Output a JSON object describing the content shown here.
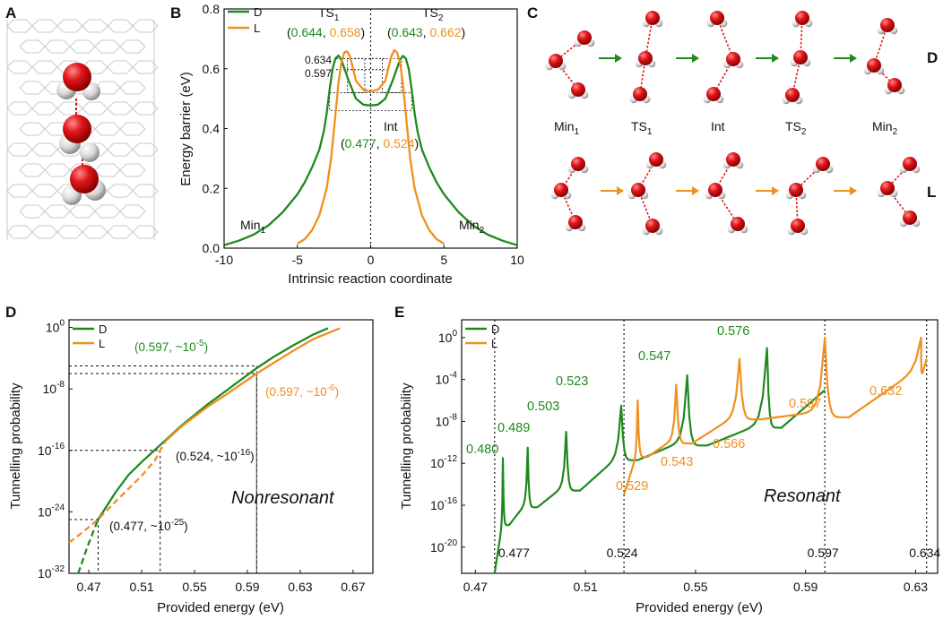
{
  "colors": {
    "D": "#1e8a1e",
    "L": "#f0901e",
    "black": "#111111",
    "oxygen": "#e0161b",
    "hydrogen": "#d8d8d8"
  },
  "panel_letters": {
    "A": "A",
    "B": "B",
    "C": "C",
    "D": "D",
    "E": "E"
  },
  "chart_data": [
    {
      "id": "B",
      "type": "line",
      "xlabel": "Intrinsic reaction coordinate",
      "ylabel": "Energy barrier (eV)",
      "xlim": [
        -10,
        10
      ],
      "ylim": [
        0,
        0.8
      ],
      "xticks": [
        "-10",
        "-5",
        "0",
        "5",
        "10"
      ],
      "yticks": [
        "0.0",
        "0.2",
        "0.4",
        "0.6",
        "0.8"
      ],
      "legend": [
        {
          "key": "D",
          "label": "D"
        },
        {
          "key": "L",
          "label": "L"
        }
      ],
      "series": [
        {
          "name": "D",
          "x": [
            -10,
            -9,
            -8,
            -7,
            -6,
            -5,
            -4.5,
            -4,
            -3.5,
            -3.2,
            -3,
            -2.8,
            -2.6,
            -2.4,
            -2.2,
            -2,
            -1.5,
            -1,
            -0.5,
            0,
            0.5,
            1,
            1.5,
            2,
            2.2,
            2.4,
            2.6,
            2.8,
            3,
            3.2,
            3.5,
            4,
            4.5,
            5,
            6,
            7,
            8,
            9,
            10
          ],
          "y": [
            0.01,
            0.025,
            0.045,
            0.075,
            0.12,
            0.18,
            0.22,
            0.27,
            0.33,
            0.39,
            0.45,
            0.53,
            0.6,
            0.635,
            0.644,
            0.63,
            0.56,
            0.5,
            0.48,
            0.477,
            0.48,
            0.5,
            0.56,
            0.63,
            0.643,
            0.635,
            0.6,
            0.53,
            0.45,
            0.39,
            0.33,
            0.27,
            0.22,
            0.18,
            0.12,
            0.075,
            0.045,
            0.025,
            0.01
          ]
        },
        {
          "name": "L",
          "x": [
            -5,
            -4.5,
            -4,
            -3.5,
            -3,
            -2.7,
            -2.4,
            -2.2,
            -2,
            -1.8,
            -1.6,
            -1.4,
            -1.2,
            -1,
            -0.5,
            0,
            0.5,
            1,
            1.2,
            1.4,
            1.6,
            1.8,
            2,
            2.2,
            2.4,
            2.7,
            3,
            3.5,
            4,
            4.5,
            5
          ],
          "y": [
            0.015,
            0.03,
            0.06,
            0.11,
            0.2,
            0.3,
            0.45,
            0.55,
            0.62,
            0.655,
            0.658,
            0.64,
            0.6,
            0.56,
            0.53,
            0.524,
            0.53,
            0.56,
            0.6,
            0.64,
            0.662,
            0.655,
            0.62,
            0.55,
            0.45,
            0.3,
            0.2,
            0.11,
            0.06,
            0.03,
            0.015
          ]
        }
      ],
      "annotations": {
        "ts1": {
          "name": "TS",
          "sub": "1",
          "d": "0.644",
          "l": "0.658"
        },
        "ts2": {
          "name": "TS",
          "sub": "2",
          "d": "0.643",
          "l": "0.662"
        },
        "int": {
          "name": "Int",
          "d": "0.477",
          "l": "0.524"
        },
        "min1": {
          "name": "Min",
          "sub": "1"
        },
        "min2": {
          "name": "Min",
          "sub": "2"
        },
        "levels": [
          {
            "label": "0.634",
            "y": 0.634
          },
          {
            "label": "0.597",
            "y": 0.597
          }
        ]
      }
    },
    {
      "id": "D",
      "type": "line",
      "xlabel": "Provided energy (eV)",
      "ylabel": "Tunnelling probability",
      "xlim": [
        0.455,
        0.685
      ],
      "ylim_log10": [
        -32,
        1
      ],
      "xticks": [
        0.47,
        0.51,
        0.55,
        0.59,
        0.63,
        0.67
      ],
      "xtick_labels": [
        "0.47",
        "0.51",
        "0.55",
        "0.59",
        "0.63",
        "0.67"
      ],
      "yticks_exp": [
        0,
        -8,
        -16,
        -24,
        -32
      ],
      "legend": [
        {
          "key": "D",
          "label": "D"
        },
        {
          "key": "L",
          "label": "L"
        }
      ],
      "series": [
        {
          "name": "D",
          "x": [
            0.462,
            0.469,
            0.477,
            0.49,
            0.5,
            0.51,
            0.524,
            0.54,
            0.55,
            0.56,
            0.575,
            0.597,
            0.61,
            0.625,
            0.64,
            0.651
          ],
          "log10_y": [
            -32,
            -28.5,
            -25,
            -21.5,
            -19.2,
            -17.5,
            -15.3,
            -12.8,
            -11.4,
            -10,
            -8.1,
            -5.3,
            -3.8,
            -2.3,
            -0.9,
            -0.1
          ]
        },
        {
          "name": "L",
          "x": [
            0.455,
            0.465,
            0.477,
            0.49,
            0.5,
            0.51,
            0.52,
            0.524,
            0.528,
            0.54,
            0.55,
            0.56,
            0.575,
            0.597,
            0.61,
            0.625,
            0.64,
            0.66
          ],
          "log10_y": [
            -28,
            -26.7,
            -25,
            -22.7,
            -21,
            -19.3,
            -17.3,
            -16,
            -14.8,
            -12.9,
            -11.6,
            -10.3,
            -8.6,
            -6,
            -4.6,
            -3,
            -1.5,
            -0.1
          ]
        }
      ],
      "annotations": [
        {
          "label": "(0.597, ~10",
          "exp": "-5",
          "close": ")",
          "series": "D",
          "x": 0.597,
          "log10_y": -5
        },
        {
          "label": "(0.597, ~10",
          "exp": "-6",
          "close": ")",
          "series": "L",
          "x": 0.597,
          "log10_y": -6
        },
        {
          "label": "(0.524, ~10",
          "exp": "-16",
          "close": ")",
          "series": "black",
          "x": 0.524,
          "log10_y": -16
        },
        {
          "label": "(0.477, ~10",
          "exp": "-25",
          "close": ")",
          "series": "black",
          "x": 0.477,
          "log10_y": -25
        }
      ],
      "regime_label": "Nonresonant"
    },
    {
      "id": "E",
      "type": "line",
      "xlabel": "Provided energy (eV)",
      "ylabel": "Tunnelling probability",
      "xlim": [
        0.465,
        0.638
      ],
      "ylim_log10": [
        -22.5,
        1.7
      ],
      "xticks": [
        0.47,
        0.51,
        0.55,
        0.59,
        0.63
      ],
      "xtick_labels": [
        "0.47",
        "0.51",
        "0.55",
        "0.59",
        "0.63"
      ],
      "yticks_exp": [
        0,
        -4,
        -8,
        -12,
        -16,
        -20
      ],
      "legend": [
        {
          "key": "D",
          "label": "D"
        },
        {
          "key": "L",
          "label": "L"
        }
      ],
      "series": [
        {
          "name": "D",
          "start": [
            0.477,
            -22.5
          ],
          "end": [
            0.597,
            -5.0
          ],
          "peaks": [
            {
              "x": 0.48,
              "peak": -11.5,
              "base": -17.3
            },
            {
              "x": 0.489,
              "peak": -10.5,
              "base": -15.6
            },
            {
              "x": 0.503,
              "peak": -9.0,
              "base": -14.0
            },
            {
              "x": 0.523,
              "peak": -6.5,
              "base": -11.1
            },
            {
              "x": 0.547,
              "peak": -3.6,
              "base": -9.7
            },
            {
              "x": 0.576,
              "peak": -1.0,
              "base": -8.0
            }
          ],
          "peak_labels": [
            "0.480",
            "0.489",
            "0.503",
            "0.523",
            "0.547",
            "0.576"
          ]
        },
        {
          "name": "L",
          "start": [
            0.524,
            -15.0
          ],
          "end": [
            0.634,
            -2.0
          ],
          "peaks": [
            {
              "x": 0.529,
              "peak": -6.0,
              "base": -10.8
            },
            {
              "x": 0.543,
              "peak": -4.5,
              "base": -9.5
            },
            {
              "x": 0.566,
              "peak": -2.0,
              "base": -7.2
            },
            {
              "x": 0.597,
              "peak": 0.0,
              "base": -7.0
            },
            {
              "x": 0.632,
              "peak": 0.0,
              "base": -2.8
            }
          ],
          "peak_labels": [
            "0.529",
            "0.543",
            "0.566",
            "0.597",
            "0.632"
          ]
        }
      ],
      "vlines": [
        {
          "x": 0.477,
          "label": "0.477"
        },
        {
          "x": 0.524,
          "label": "0.524"
        },
        {
          "x": 0.597,
          "label": "0.597"
        },
        {
          "x": 0.634,
          "label": "0.634"
        }
      ],
      "regime_label": "Resonant"
    }
  ],
  "panelC": {
    "row_labels": {
      "D": "D",
      "L": "L"
    },
    "stage_labels": [
      {
        "name": "Min",
        "sub": "1"
      },
      {
        "name": "TS",
        "sub": "1"
      },
      {
        "name": "Int",
        "sub": ""
      },
      {
        "name": "TS",
        "sub": "2"
      },
      {
        "name": "Min",
        "sub": "2"
      }
    ]
  }
}
